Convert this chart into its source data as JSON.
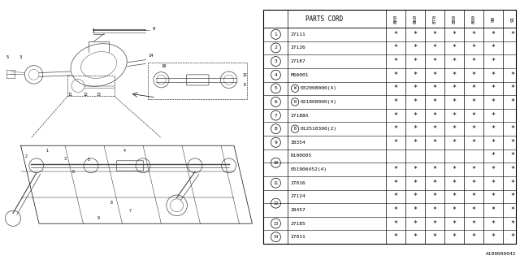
{
  "fig_id": "A199000042",
  "bg_color": "#ffffff",
  "col_headers": [
    "800",
    "860",
    "870",
    "880",
    "890",
    "90",
    "91"
  ],
  "rows": [
    {
      "num": "1",
      "part": "27111",
      "stars": [
        1,
        1,
        1,
        1,
        1,
        1,
        1
      ],
      "combined": false,
      "span_a": false
    },
    {
      "num": "2",
      "part": "27126",
      "stars": [
        1,
        1,
        1,
        1,
        1,
        1,
        0
      ],
      "combined": false,
      "span_a": false
    },
    {
      "num": "3",
      "part": "27187",
      "stars": [
        1,
        1,
        1,
        1,
        1,
        1,
        0
      ],
      "combined": false,
      "span_a": false
    },
    {
      "num": "4",
      "part": "M66001",
      "stars": [
        1,
        1,
        1,
        1,
        1,
        1,
        1
      ],
      "combined": false,
      "span_a": false
    },
    {
      "num": "5",
      "part": "W032008000(4)",
      "stars": [
        1,
        1,
        1,
        1,
        1,
        1,
        1
      ],
      "combined": false,
      "span_a": false
    },
    {
      "num": "6",
      "part": "N021808000(4)",
      "stars": [
        1,
        1,
        1,
        1,
        1,
        1,
        1
      ],
      "combined": false,
      "span_a": false
    },
    {
      "num": "7",
      "part": "27188A",
      "stars": [
        1,
        1,
        1,
        1,
        1,
        1,
        0
      ],
      "combined": false,
      "span_a": false
    },
    {
      "num": "8",
      "part": "B012510300(2)",
      "stars": [
        1,
        1,
        1,
        1,
        1,
        1,
        1
      ],
      "combined": false,
      "span_a": false
    },
    {
      "num": "9",
      "part": "38354",
      "stars": [
        1,
        1,
        1,
        1,
        1,
        1,
        1
      ],
      "combined": false,
      "span_a": false
    },
    {
      "num": "10",
      "part": "R190005",
      "stars": [
        0,
        0,
        0,
        0,
        0,
        1,
        1
      ],
      "combined": true,
      "span_a": true
    },
    {
      "num": "10",
      "part": "051906452(4)",
      "stars": [
        1,
        1,
        1,
        1,
        1,
        1,
        1
      ],
      "combined": true,
      "span_a": false
    },
    {
      "num": "11",
      "part": "27016",
      "stars": [
        1,
        1,
        1,
        1,
        1,
        1,
        1
      ],
      "combined": false,
      "span_a": false
    },
    {
      "num": "12",
      "part": "27124",
      "stars": [
        1,
        1,
        1,
        1,
        1,
        1,
        1
      ],
      "combined": true,
      "span_a": true
    },
    {
      "num": "12",
      "part": "28457",
      "stars": [
        1,
        1,
        1,
        1,
        1,
        1,
        1
      ],
      "combined": true,
      "span_a": false
    },
    {
      "num": "13",
      "part": "27185",
      "stars": [
        1,
        1,
        1,
        1,
        1,
        1,
        1
      ],
      "combined": false,
      "span_a": false
    },
    {
      "num": "14",
      "part": "27011",
      "stars": [
        1,
        1,
        1,
        1,
        1,
        1,
        1
      ],
      "combined": false,
      "span_a": false
    }
  ],
  "special_prefix": {
    "5": "W",
    "6": "N",
    "8": "B"
  },
  "lc": "#444444"
}
